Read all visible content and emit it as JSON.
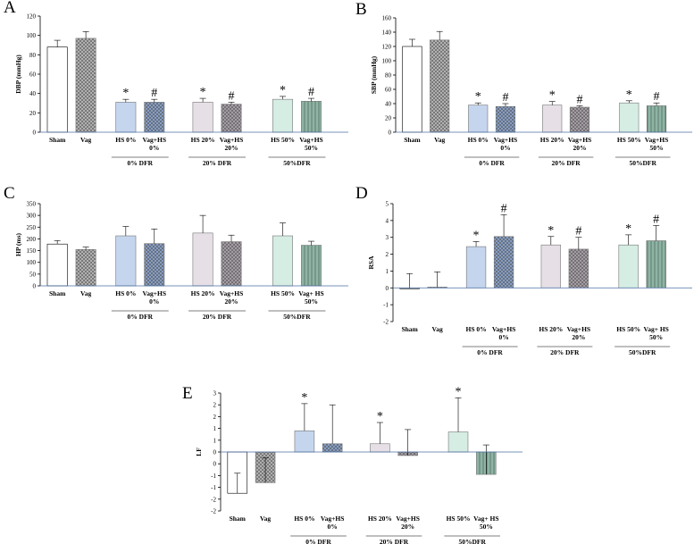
{
  "chart_data": [
    {
      "type": "bar",
      "panel": "A",
      "ylabel": "DBP (mmHg)",
      "categories": [
        [
          "Sham"
        ],
        [
          "Vag"
        ],
        [
          "HS 0%"
        ],
        [
          "Vag+HS",
          "0%"
        ],
        [
          "HS 20%"
        ],
        [
          "Vag+HS",
          "20%"
        ],
        [
          "HS 50%"
        ],
        [
          "Vag+HS",
          "50%"
        ]
      ],
      "values": [
        88,
        97,
        31,
        31,
        31,
        29,
        34,
        32
      ],
      "errors": [
        7,
        7,
        3,
        3,
        4,
        2,
        3,
        3
      ],
      "annotations": [
        null,
        null,
        "*",
        "#",
        "*",
        "#",
        "*",
        "#"
      ],
      "groups": [
        "0% DFR",
        "20% DFR",
        "50%DFR"
      ],
      "colors": [
        "#ffffff",
        "#b8b8b8",
        "#c5d5ee",
        "#8aa3cc",
        "#e6dfe6",
        "#aaa2aa",
        "#d5ede3",
        "#8fb3a4"
      ],
      "patterns": [
        "solid",
        "cross",
        "solid",
        "cross",
        "solid",
        "cross",
        "solid",
        "stripes"
      ],
      "ylim": [
        0,
        120
      ],
      "yticks": [
        0,
        20,
        40,
        60,
        80,
        100,
        120
      ]
    },
    {
      "type": "bar",
      "panel": "B",
      "ylabel": "SBP (mmHg)",
      "categories": [
        [
          "Sham"
        ],
        [
          "Vag"
        ],
        [
          "HS 0%"
        ],
        [
          "Vag+HS",
          "0%"
        ],
        [
          "HS 20%"
        ],
        [
          "Vag+HS",
          "20%"
        ],
        [
          "HS 50%"
        ],
        [
          "Vag+HS",
          "50%"
        ]
      ],
      "values": [
        120,
        129,
        38,
        36,
        38,
        35,
        41,
        37
      ],
      "errors": [
        10,
        12,
        3,
        4,
        5,
        2,
        3,
        4
      ],
      "annotations": [
        null,
        null,
        "*",
        "#",
        "*",
        "#",
        "*",
        "#"
      ],
      "groups": [
        "0% DFR",
        "20% DFR",
        "50%DFR"
      ],
      "colors": [
        "#ffffff",
        "#b8b8b8",
        "#c5d5ee",
        "#8aa3cc",
        "#e6dfe6",
        "#aaa2aa",
        "#d5ede3",
        "#8fb3a4"
      ],
      "patterns": [
        "solid",
        "cross",
        "solid",
        "cross",
        "solid",
        "cross",
        "solid",
        "stripes"
      ],
      "ylim": [
        0,
        160
      ],
      "yticks": [
        0,
        20,
        40,
        60,
        80,
        100,
        120,
        140,
        160
      ]
    },
    {
      "type": "bar",
      "panel": "C",
      "ylabel": "HP (ms)",
      "categories": [
        [
          "Sham"
        ],
        [
          "Vag"
        ],
        [
          "HS 0%"
        ],
        [
          "Vag+HS",
          "0%"
        ],
        [
          "HS 20%"
        ],
        [
          "Vag+HS",
          "20%"
        ],
        [
          "HS 50%"
        ],
        [
          "Vag+ HS",
          "50%"
        ]
      ],
      "values": [
        178,
        155,
        213,
        180,
        225,
        188,
        213,
        173
      ],
      "errors": [
        15,
        10,
        40,
        62,
        75,
        28,
        55,
        17
      ],
      "groups": [
        "0% DFR",
        "20% DFR",
        "50%DFR"
      ],
      "colors": [
        "#ffffff",
        "#b8b8b8",
        "#c5d5ee",
        "#8aa3cc",
        "#e6dfe6",
        "#aaa2aa",
        "#d5ede3",
        "#8fb3a4"
      ],
      "patterns": [
        "solid",
        "cross",
        "solid",
        "cross",
        "solid",
        "cross",
        "solid",
        "stripes"
      ],
      "ylim": [
        0,
        350
      ],
      "yticks": [
        0,
        50,
        100,
        150,
        200,
        250,
        300,
        350
      ]
    },
    {
      "type": "bar",
      "panel": "D",
      "ylabel": "RSA",
      "categories": [
        [
          "Sham"
        ],
        [
          "Vag"
        ],
        [
          "HS 0%"
        ],
        [
          "Vag+HS",
          "0%"
        ],
        [
          "HS 20%"
        ],
        [
          "Vag+HS",
          "20%"
        ],
        [
          "HS 50%"
        ],
        [
          "Vag+ HS",
          "50%"
        ]
      ],
      "values": [
        -0.05,
        0.05,
        2.45,
        3.05,
        2.55,
        2.3,
        2.55,
        2.8
      ],
      "errors": [
        0.9,
        0.9,
        0.3,
        1.3,
        0.5,
        0.7,
        0.6,
        0.9
      ],
      "annotations": [
        null,
        null,
        "*",
        "#",
        "*",
        "#",
        "*",
        "#"
      ],
      "groups": [
        "0% DFR",
        "20% DFR",
        "50%DFR"
      ],
      "colors": [
        "#ffffff",
        "#b8b8b8",
        "#c5d5ee",
        "#8aa3cc",
        "#e6dfe6",
        "#aaa2aa",
        "#d5ede3",
        "#8fb3a4"
      ],
      "patterns": [
        "solid",
        "cross",
        "solid",
        "cross",
        "solid",
        "cross",
        "solid",
        "stripes"
      ],
      "ylim": [
        -2,
        5
      ],
      "yticks": [
        -2,
        -1,
        0,
        1,
        2,
        3,
        4,
        5
      ]
    },
    {
      "type": "bar",
      "panel": "E",
      "ylabel": "LF",
      "categories": [
        [
          "Sham"
        ],
        [
          "Vag"
        ],
        [
          "HS 0%"
        ],
        [
          "Vag+HS",
          "0%"
        ],
        [
          "HS 20%"
        ],
        [
          "Vag+HS",
          "20%"
        ],
        [
          "HS 50%"
        ],
        [
          "Vag+ HS",
          "50%"
        ]
      ],
      "values": [
        -1.75,
        -1.3,
        0.9,
        0.35,
        0.35,
        -0.15,
        0.85,
        -0.95
      ],
      "errors": [
        0.85,
        1.05,
        1.15,
        1.65,
        0.9,
        1.1,
        1.45,
        1.25
      ],
      "annotations": [
        null,
        null,
        "*",
        null,
        "*",
        null,
        "*",
        null
      ],
      "groups": [
        "0% DFR",
        "20% DFR",
        "50%DFR"
      ],
      "colors": [
        "#ffffff",
        "#b8b8b8",
        "#c5d5ee",
        "#8aa3cc",
        "#e6dfe6",
        "#aaa2aa",
        "#d5ede3",
        "#8fb3a4"
      ],
      "patterns": [
        "solid",
        "cross",
        "solid",
        "cross",
        "solid",
        "cross",
        "solid",
        "stripes"
      ],
      "ylim": [
        -2.5,
        2.5
      ],
      "yticks": [
        {
          "value": -2.5,
          "label": "-2"
        },
        {
          "value": -2,
          "label": "-2"
        },
        {
          "value": -1.5,
          "label": "-1"
        },
        {
          "value": -1,
          "label": "-1"
        },
        {
          "value": -0.5,
          "label": "0"
        },
        0,
        {
          "value": 0.5,
          "label": "1"
        },
        1,
        {
          "value": 1.5,
          "label": "2"
        },
        2,
        {
          "value": 2.5,
          "label": "3"
        }
      ]
    }
  ]
}
